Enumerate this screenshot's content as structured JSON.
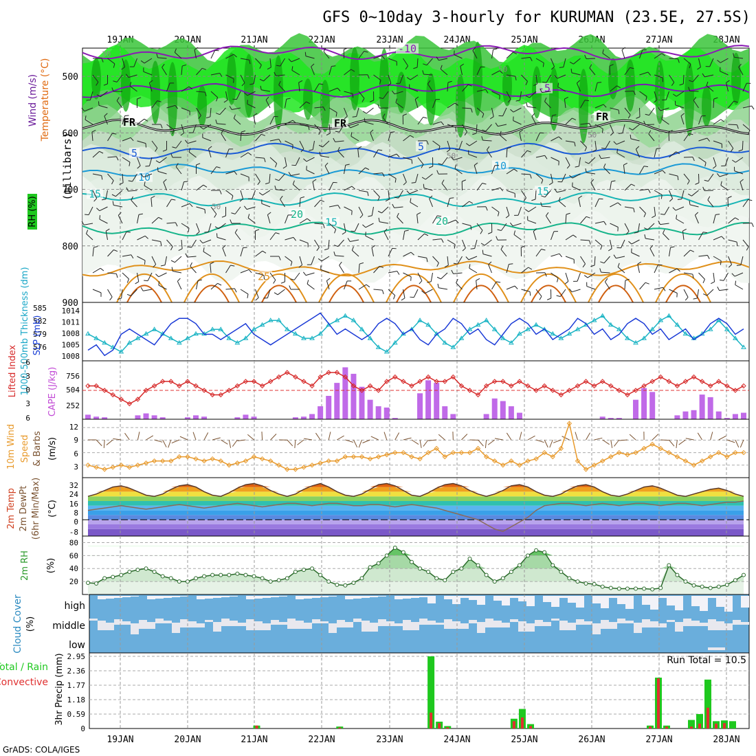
{
  "chart_data": {
    "type": "meteogram",
    "title": "GFS 0~10day 3-hourly for KURUMAN (23.5E, 27.5S)",
    "credit": "GrADS: COLA/IGES",
    "days": [
      "19JAN",
      "20JAN",
      "21JAN",
      "22JAN",
      "23JAN",
      "24JAN",
      "25JAN",
      "26JAN",
      "27JAN",
      "28JAN"
    ],
    "panels": {
      "upper_air": {
        "ylabel": "(millibars)",
        "labels": {
          "wind": "Wind (m/s)",
          "temp": "Temperature (°C)",
          "rh": "RH (%)"
        },
        "ylim": [
          900,
          450
        ],
        "yticks": [
          900,
          800,
          700,
          600,
          500
        ],
        "ytick_labels": [
          "900",
          "800",
          "700",
          "600",
          "500"
        ],
        "isotherms": [
          {
            "label": "-10",
            "level": 458
          },
          {
            "label": "-5",
            "level": 525
          },
          {
            "label": "FR",
            "level": 590
          },
          {
            "label": "5",
            "level": 632
          },
          {
            "label": "10",
            "level": 668
          },
          {
            "label": "15",
            "level": 718
          },
          {
            "label": "20",
            "level": 770
          },
          {
            "label": "25",
            "level": 840
          }
        ],
        "isotherm_labels": [
          "-10",
          "-5",
          "FR",
          "FR",
          "FR",
          "5",
          "5",
          "10",
          "10",
          "15",
          "15",
          "15",
          "20",
          "20",
          "25"
        ],
        "rh_contour_labels": [
          "30",
          "50",
          "50",
          "50",
          "50"
        ]
      },
      "thickness_slp": {
        "labels": {
          "thk": "1000-500mb Thickness (dm)",
          "slp": "SLP (mb)"
        },
        "thickness_ticks": [
          "585",
          "582",
          "579",
          "576"
        ],
        "slp_ticks": [
          "1014",
          "1011",
          "1008",
          "1005",
          "1008"
        ],
        "thickness_dm": [
          577,
          578,
          576,
          577,
          580,
          581,
          580,
          579,
          578,
          580,
          582,
          583,
          583,
          582,
          580,
          580,
          579,
          580,
          581,
          582,
          580,
          579,
          578,
          579,
          580,
          581,
          582,
          583,
          584,
          582,
          580,
          581,
          580,
          579,
          580,
          582,
          583,
          582,
          580,
          581,
          579,
          578,
          580,
          581,
          583,
          582,
          580,
          581,
          579,
          578,
          580,
          582,
          583,
          582,
          580,
          581,
          579,
          580,
          581,
          583,
          582,
          580,
          581,
          579,
          580,
          582,
          583,
          582,
          580,
          581,
          579,
          580,
          581,
          579,
          580,
          582,
          583,
          582,
          580,
          581
        ],
        "slp_mb": [
          1009,
          1008,
          1007,
          1006,
          1005,
          1007,
          1008,
          1009,
          1010,
          1009,
          1008,
          1007,
          1008,
          1009,
          1009,
          1010,
          1010,
          1008,
          1007,
          1008,
          1010,
          1011,
          1012,
          1012,
          1010,
          1009,
          1008,
          1008,
          1009,
          1011,
          1012,
          1013,
          1012,
          1010,
          1008,
          1006,
          1005,
          1007,
          1009,
          1010,
          1012,
          1011,
          1009,
          1007,
          1006,
          1008,
          1010,
          1011,
          1012,
          1010,
          1008,
          1007,
          1009,
          1010,
          1011,
          1010,
          1009,
          1008,
          1009,
          1010,
          1011,
          1012,
          1013,
          1011,
          1010,
          1008,
          1007,
          1008,
          1010,
          1012,
          1013,
          1011,
          1009,
          1008,
          1009,
          1010,
          1012,
          1010,
          1008,
          1006
        ]
      },
      "lifted_cape": {
        "labels": {
          "li": "Lifted Index",
          "cape": "CAPE (J/kg)"
        },
        "li_ticks": [
          "-3",
          "0",
          "3",
          "6",
          "-6"
        ],
        "cape_ticks": [
          "756",
          "504",
          "252"
        ],
        "lifted_index": [
          -1,
          -1,
          0,
          1,
          2,
          3,
          2,
          0,
          -1,
          -2,
          -2,
          -1,
          -2,
          -1,
          0,
          1,
          1,
          0,
          -1,
          -2,
          -2,
          -1,
          -2,
          -3,
          -4,
          -3,
          -2,
          -1,
          -3,
          -4,
          -4,
          -3,
          -1,
          0,
          -1,
          0,
          -2,
          -3,
          -2,
          -1,
          -2,
          -3,
          -2,
          -2,
          -3,
          -1,
          0,
          1,
          -1,
          -2,
          -2,
          -1,
          -2,
          -1,
          0,
          -1,
          0,
          1,
          0,
          -1,
          -2,
          -1,
          -2,
          -1,
          0,
          1,
          0,
          -1,
          -2,
          -3,
          -2,
          -1,
          -2,
          -3,
          -2,
          -1,
          -2,
          -1,
          0,
          -1
        ],
        "cape_jkg": [
          70,
          40,
          30,
          0,
          0,
          0,
          60,
          90,
          60,
          30,
          0,
          0,
          30,
          60,
          40,
          0,
          0,
          0,
          30,
          70,
          40,
          0,
          0,
          0,
          0,
          30,
          40,
          80,
          200,
          360,
          560,
          800,
          700,
          500,
          300,
          200,
          180,
          20,
          0,
          0,
          400,
          600,
          560,
          200,
          80,
          0,
          0,
          0,
          80,
          320,
          280,
          200,
          100,
          0,
          0,
          0,
          0,
          0,
          0,
          0,
          0,
          0,
          40,
          20,
          20,
          0,
          300,
          480,
          420,
          0,
          0,
          60,
          120,
          140,
          380,
          340,
          120,
          20,
          80,
          100
        ]
      },
      "wind10m": {
        "labels": {
          "wind": "10m Wind",
          "speed": "Speed",
          "barbs": "& Barbs",
          "unit": "(m/s)"
        },
        "ticks": [
          "12",
          "9",
          "6",
          "3"
        ],
        "speed_ms": [
          3,
          2.5,
          2,
          2.5,
          3,
          2.5,
          3,
          3.5,
          4,
          4,
          4,
          5,
          5,
          4.5,
          4,
          4.5,
          4,
          3,
          3.5,
          4,
          5,
          4.5,
          4,
          3,
          2,
          2,
          2.5,
          3,
          3.5,
          4,
          4,
          5,
          5,
          5,
          4.5,
          5,
          5.5,
          6,
          6,
          5,
          4.5,
          6,
          7,
          5,
          6,
          6,
          6,
          7,
          5,
          4,
          3,
          4,
          3,
          4,
          4.5,
          6,
          5,
          7,
          13,
          4,
          2,
          3,
          4,
          5,
          6,
          5.5,
          6,
          7,
          8,
          7,
          6,
          5,
          4,
          3,
          4,
          5,
          6,
          5,
          6,
          6
        ]
      },
      "temp2m": {
        "labels": {
          "temp": "2m Temp",
          "dewpt": "2m DewPt",
          "minmax": "(6hr Min/Max)",
          "unit": "(°C)"
        },
        "ticks": [
          "32",
          "24",
          "16",
          "8",
          "0",
          "-8"
        ],
        "temperature_c": [
          20,
          22,
          25,
          28,
          29,
          27,
          24,
          21,
          20,
          22,
          26,
          29,
          30,
          28,
          24,
          21,
          20,
          23,
          27,
          30,
          31,
          29,
          25,
          22,
          20,
          22,
          26,
          29,
          31,
          28,
          24,
          21,
          20,
          22,
          26,
          30,
          31,
          29,
          25,
          21,
          20,
          23,
          27,
          30,
          31,
          29,
          25,
          22,
          20,
          22,
          25,
          29,
          30,
          28,
          24,
          21,
          20,
          22,
          26,
          29,
          30,
          28,
          24,
          21,
          20,
          22,
          25,
          28,
          29,
          27,
          24,
          21,
          20,
          22,
          24,
          26,
          27,
          25,
          22,
          20
        ],
        "dewpoint_c": [
          8,
          9,
          10,
          11,
          12,
          11,
          10,
          9,
          10,
          11,
          12,
          13,
          12,
          11,
          10,
          11,
          12,
          13,
          14,
          13,
          12,
          11,
          12,
          13,
          14,
          14,
          13,
          12,
          13,
          14,
          14,
          13,
          12,
          12,
          13,
          13,
          12,
          11,
          12,
          13,
          12,
          11,
          10,
          8,
          6,
          4,
          2,
          0,
          -4,
          -8,
          -10,
          -6,
          -2,
          2,
          8,
          12,
          13,
          14,
          14,
          13,
          12,
          13,
          14,
          13,
          12,
          13,
          14,
          14,
          13,
          12,
          13,
          14,
          14,
          13,
          12,
          13,
          14,
          15,
          15,
          16
        ]
      },
      "rh2m": {
        "labels": {
          "rh": "2m RH",
          "unit": "(%)"
        },
        "ticks": [
          "80",
          "60",
          "40",
          "20"
        ],
        "rh_pct": [
          18,
          17,
          25,
          27,
          30,
          35,
          38,
          40,
          35,
          28,
          25,
          20,
          20,
          25,
          28,
          30,
          30,
          30,
          32,
          30,
          28,
          25,
          20,
          22,
          25,
          35,
          38,
          40,
          30,
          20,
          15,
          14,
          18,
          25,
          42,
          48,
          60,
          72,
          65,
          50,
          40,
          35,
          25,
          22,
          35,
          40,
          55,
          45,
          30,
          20,
          25,
          35,
          45,
          60,
          68,
          65,
          45,
          35,
          25,
          20,
          17,
          16,
          12,
          10,
          9,
          9,
          9,
          9,
          8,
          10,
          45,
          30,
          20,
          14,
          12,
          10,
          12,
          15,
          22,
          30
        ]
      },
      "cloud": {
        "labels": {
          "title": "Cloud Cover",
          "unit": "(%)",
          "high": "high",
          "middle": "middle",
          "low": "low"
        }
      },
      "precip": {
        "labels": {
          "total": "Total / Rain",
          "convective": "Convective",
          "ylabel": "3hr Precip (mm)",
          "run_total": "Run Total = 10.5"
        },
        "ticks": [
          "2.95",
          "2.36",
          "1.77",
          "1.18",
          "0.59",
          "0"
        ],
        "ylim": [
          0,
          2.95
        ],
        "total_mm": [
          0,
          0,
          0,
          0,
          0,
          0,
          0,
          0,
          0,
          0,
          0,
          0,
          0,
          0,
          0,
          0,
          0,
          0,
          0,
          0,
          0.12,
          0,
          0,
          0,
          0,
          0,
          0,
          0,
          0,
          0,
          0.08,
          0,
          0,
          0,
          0,
          0,
          0,
          0,
          0,
          0,
          0,
          2.95,
          0.28,
          0.1,
          0,
          0,
          0,
          0,
          0,
          0,
          0,
          0.4,
          0.8,
          0.18,
          0,
          0,
          0,
          0,
          0,
          0,
          0,
          0,
          0,
          0,
          0,
          0,
          0,
          0,
          0,
          0,
          0,
          0,
          0,
          0,
          0,
          0,
          0,
          0,
          0,
          0
        ],
        "convective_mm": [
          0,
          0,
          0,
          0,
          0,
          0,
          0,
          0,
          0,
          0,
          0,
          0,
          0,
          0,
          0,
          0,
          0,
          0,
          0,
          0,
          0.12,
          0,
          0,
          0,
          0,
          0,
          0,
          0,
          0,
          0,
          0.04,
          0,
          0,
          0,
          0,
          0,
          0,
          0,
          0,
          0,
          0,
          0.65,
          0.22,
          0.05,
          0,
          0,
          0,
          0,
          0,
          0,
          0,
          0.3,
          0.45,
          0.1,
          0,
          0,
          0,
          0,
          0,
          0,
          0,
          0,
          0,
          0,
          0,
          0,
          0,
          0,
          0,
          0,
          0,
          0,
          0,
          0,
          0,
          0,
          0,
          0,
          0,
          0
        ],
        "late_total_mm": [
          0.12,
          2.08,
          0.12,
          0,
          0,
          0.35,
          0.59,
          2.0,
          0.3,
          0.33,
          0.3
        ],
        "late_conv_mm": [
          0.08,
          2.05,
          0.08,
          0,
          0,
          0.08,
          0.2,
          0.85,
          0.2,
          0.22,
          0
        ]
      }
    }
  }
}
